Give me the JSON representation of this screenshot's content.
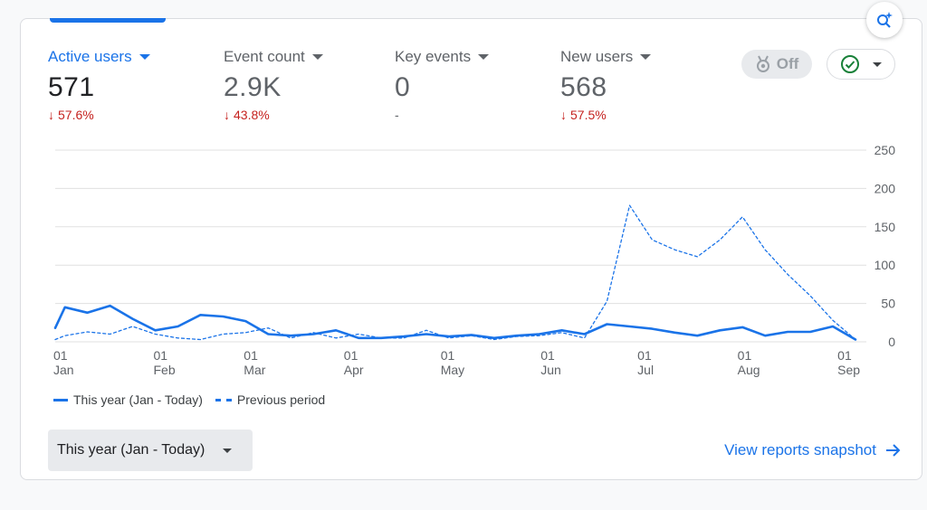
{
  "metrics": [
    {
      "label": "Active users",
      "value": "571",
      "change": "57.6%",
      "trend": "down"
    },
    {
      "label": "Event count",
      "value": "2.9K",
      "change": "43.8%",
      "trend": "down"
    },
    {
      "label": "Key events",
      "value": "0",
      "change": "-",
      "trend": "none"
    },
    {
      "label": "New users",
      "value": "568",
      "change": "57.5%",
      "trend": "down"
    }
  ],
  "toolbar": {
    "off_label": "Off"
  },
  "legend": {
    "current": "This year (Jan - Today)",
    "previous": "Previous period"
  },
  "date_range": {
    "selected": "This year (Jan - Today)"
  },
  "snapshot_link": "View reports snapshot",
  "colors": {
    "accent": "#1a73e8",
    "negative": "#c5221f",
    "grid": "#e0e0e0"
  },
  "icons": {
    "insights": "insights-sparkle-icon",
    "compare": "check-circle-icon",
    "arrow": "arrow-right-icon",
    "award": "award-icon"
  },
  "chart_data": {
    "type": "line",
    "ylim": [
      0,
      250
    ],
    "y_ticks": [
      0,
      50,
      100,
      150,
      200,
      250
    ],
    "x_ticks": [
      {
        "day": "01",
        "month": "Jan",
        "x": 0
      },
      {
        "day": "01",
        "month": "Feb",
        "x": 31
      },
      {
        "day": "01",
        "month": "Mar",
        "x": 59
      },
      {
        "day": "01",
        "month": "Apr",
        "x": 90
      },
      {
        "day": "01",
        "month": "May",
        "x": 120
      },
      {
        "day": "01",
        "month": "Jun",
        "x": 151
      },
      {
        "day": "01",
        "month": "Jul",
        "x": 181
      },
      {
        "day": "01",
        "month": "Aug",
        "x": 212
      },
      {
        "day": "01",
        "month": "Sep",
        "x": 243
      }
    ],
    "series": [
      {
        "name": "This year (Jan - Today)",
        "style": "solid",
        "x": [
          0,
          3,
          10,
          17,
          24,
          31,
          38,
          45,
          52,
          59,
          66,
          73,
          80,
          87,
          94,
          101,
          108,
          115,
          122,
          129,
          136,
          143,
          150,
          157,
          164,
          171,
          178,
          185,
          192,
          199,
          206,
          213,
          220,
          227,
          234,
          241,
          248
        ],
        "values": [
          18,
          45,
          38,
          47,
          30,
          15,
          20,
          35,
          33,
          27,
          10,
          8,
          10,
          15,
          5,
          5,
          7,
          10,
          7,
          9,
          5,
          8,
          10,
          15,
          10,
          23,
          20,
          17,
          12,
          8,
          15,
          19,
          8,
          13,
          13,
          20,
          3
        ]
      },
      {
        "name": "Previous period",
        "style": "dashed",
        "x": [
          0,
          3,
          10,
          17,
          24,
          31,
          38,
          45,
          52,
          59,
          66,
          73,
          80,
          87,
          94,
          101,
          108,
          115,
          122,
          129,
          136,
          143,
          150,
          157,
          164,
          171,
          178,
          185,
          192,
          199,
          206,
          213,
          220,
          227,
          234,
          241,
          248
        ],
        "values": [
          3,
          8,
          13,
          10,
          20,
          10,
          5,
          3,
          10,
          12,
          18,
          5,
          12,
          5,
          10,
          5,
          5,
          15,
          5,
          8,
          3,
          7,
          8,
          12,
          5,
          53,
          178,
          133,
          120,
          111,
          133,
          163,
          120,
          88,
          60,
          28,
          3
        ]
      }
    ]
  }
}
